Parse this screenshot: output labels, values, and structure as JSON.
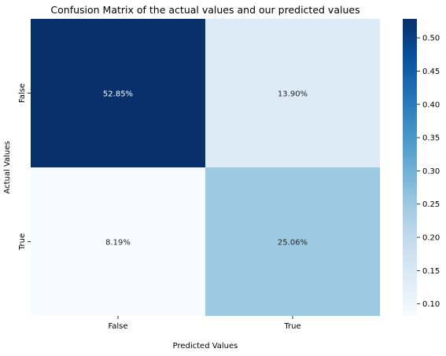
{
  "chart_data": {
    "type": "heatmap",
    "title": "Confusion Matrix of the actual values and our predicted values",
    "xlabel": "Predicted Values",
    "ylabel": "Actual Values",
    "x_categories": [
      "False",
      "True"
    ],
    "y_categories": [
      "False",
      "True"
    ],
    "values": [
      [
        0.5285,
        0.139
      ],
      [
        0.0819,
        0.2506
      ]
    ],
    "cell_labels": [
      [
        "52.85%",
        "13.90%"
      ],
      [
        "8.19%",
        "25.06%"
      ]
    ],
    "colormap": "Blues",
    "colorbar": {
      "range": [
        0.0819,
        0.5285
      ],
      "ticks": [
        0.1,
        0.15,
        0.2,
        0.25,
        0.3,
        0.35,
        0.4,
        0.45,
        0.5
      ],
      "tick_labels": [
        "0.10",
        "0.15",
        "0.20",
        "0.25",
        "0.30",
        "0.35",
        "0.40",
        "0.45",
        "0.50"
      ]
    }
  }
}
